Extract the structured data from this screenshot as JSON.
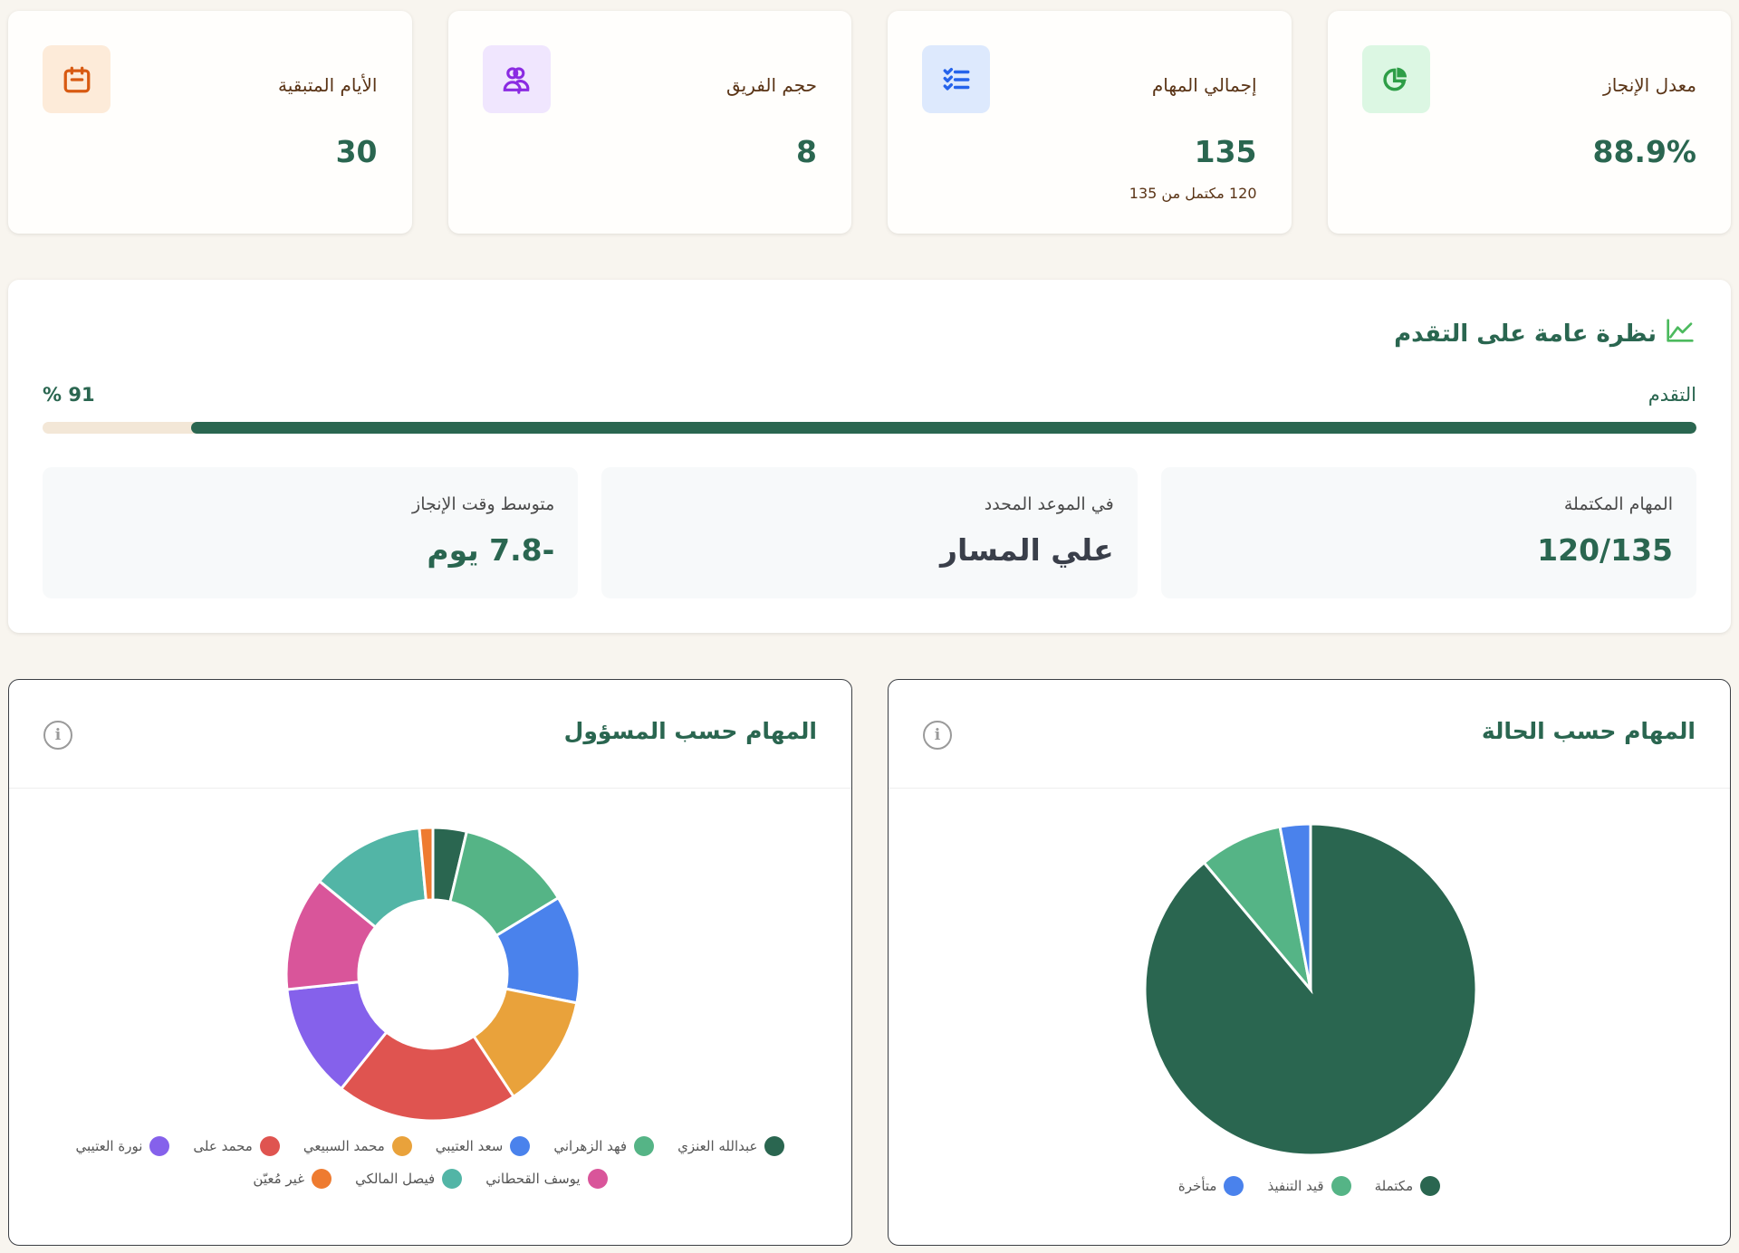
{
  "kpis": [
    {
      "label": "معدل الإنجاز",
      "value": "88.9%",
      "sub": "",
      "icon": "pie-chart-icon",
      "icon_color": "#2e9e47",
      "icon_bg": "#dcf7e3"
    },
    {
      "label": "إجمالي المهام",
      "value": "135",
      "sub": "120 مكتمل من 135",
      "icon": "checklist-icon",
      "icon_color": "#2563eb",
      "icon_bg": "#dde9fd"
    },
    {
      "label": "حجم الفريق",
      "value": "8",
      "sub": "",
      "icon": "users-icon",
      "icon_color": "#8b2be2",
      "icon_bg": "#f0e6fe"
    },
    {
      "label": "الأيام المتبقية",
      "value": "30",
      "sub": "",
      "icon": "calendar-icon",
      "icon_color": "#d85a12",
      "icon_bg": "#fdebd9"
    }
  ],
  "progress": {
    "title": "نظرة عامة على التقدم",
    "label": "التقدم",
    "percent_text": "% 91",
    "percent": 91,
    "stats": [
      {
        "label": "المهام المكتملة",
        "value": "120/135",
        "style": "green"
      },
      {
        "label": "في الموعد المحدد",
        "value": "علي المسار",
        "style": "dark"
      },
      {
        "label": "متوسط وقت الإنجاز",
        "value": "-7.8 يوم",
        "style": "green"
      }
    ]
  },
  "charts": {
    "by_status": {
      "title": "المهام حسب الحالة",
      "info_label": "i"
    },
    "by_assignee": {
      "title": "المهام حسب المسؤول",
      "info_label": "i"
    }
  },
  "chart_data": [
    {
      "type": "pie",
      "title": "المهام حسب الحالة",
      "categories": [
        "مكتملة",
        "قيد التنفيذ",
        "متأخرة"
      ],
      "values": [
        120,
        11,
        4
      ],
      "colors": [
        "#2a6650",
        "#55b486",
        "#4a82ec"
      ],
      "legend_position": "bottom",
      "donut": false
    },
    {
      "type": "pie",
      "title": "المهام حسب المسؤول",
      "categories": [
        "عبدالله العنزي",
        "فهد الزهراني",
        "سعد العتيبي",
        "محمد السبيعي",
        "محمد على",
        "نورة العتيبي",
        "يوسف القحطاني",
        "فيصل المالكي",
        "غير مُعيّن"
      ],
      "values": [
        5,
        17,
        16,
        17,
        27,
        17,
        17,
        17,
        2
      ],
      "colors": [
        "#2a6650",
        "#55b486",
        "#4a82ec",
        "#e9a23b",
        "#df5450",
        "#8561eb",
        "#d9559a",
        "#52b5a6",
        "#ee7b30"
      ],
      "legend_position": "bottom",
      "donut": true
    }
  ]
}
